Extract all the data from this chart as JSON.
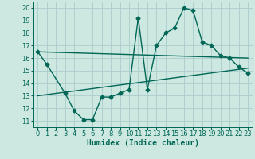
{
  "xlabel": "Humidex (Indice chaleur)",
  "bg_color": "#cce8e0",
  "grid_color": "#aacccc",
  "line_color": "#006655",
  "xlim": [
    -0.5,
    23.5
  ],
  "ylim": [
    10.5,
    20.5
  ],
  "xticks": [
    0,
    1,
    2,
    3,
    4,
    5,
    6,
    7,
    8,
    9,
    10,
    11,
    12,
    13,
    14,
    15,
    16,
    17,
    18,
    19,
    20,
    21,
    22,
    23
  ],
  "yticks": [
    11,
    12,
    13,
    14,
    15,
    16,
    17,
    18,
    19,
    20
  ],
  "curve1_x": [
    0,
    1,
    3,
    4,
    5,
    6,
    7,
    8,
    9,
    10,
    11,
    12,
    13,
    14,
    15,
    16,
    17,
    18,
    19,
    20,
    21,
    22,
    23
  ],
  "curve1_y": [
    16.5,
    15.5,
    13.2,
    11.8,
    11.1,
    11.1,
    12.9,
    12.9,
    13.2,
    13.5,
    19.2,
    13.5,
    17.0,
    18.0,
    18.4,
    20.0,
    19.8,
    17.3,
    17.0,
    16.2,
    16.0,
    15.3,
    14.8
  ],
  "line1_x": [
    0,
    23
  ],
  "line1_y": [
    16.5,
    16.0
  ],
  "line2_x": [
    0,
    23
  ],
  "line2_y": [
    13.0,
    15.2
  ],
  "marker_size": 2.5,
  "line_width": 1.0,
  "xlabel_fontsize": 7,
  "tick_fontsize": 6
}
